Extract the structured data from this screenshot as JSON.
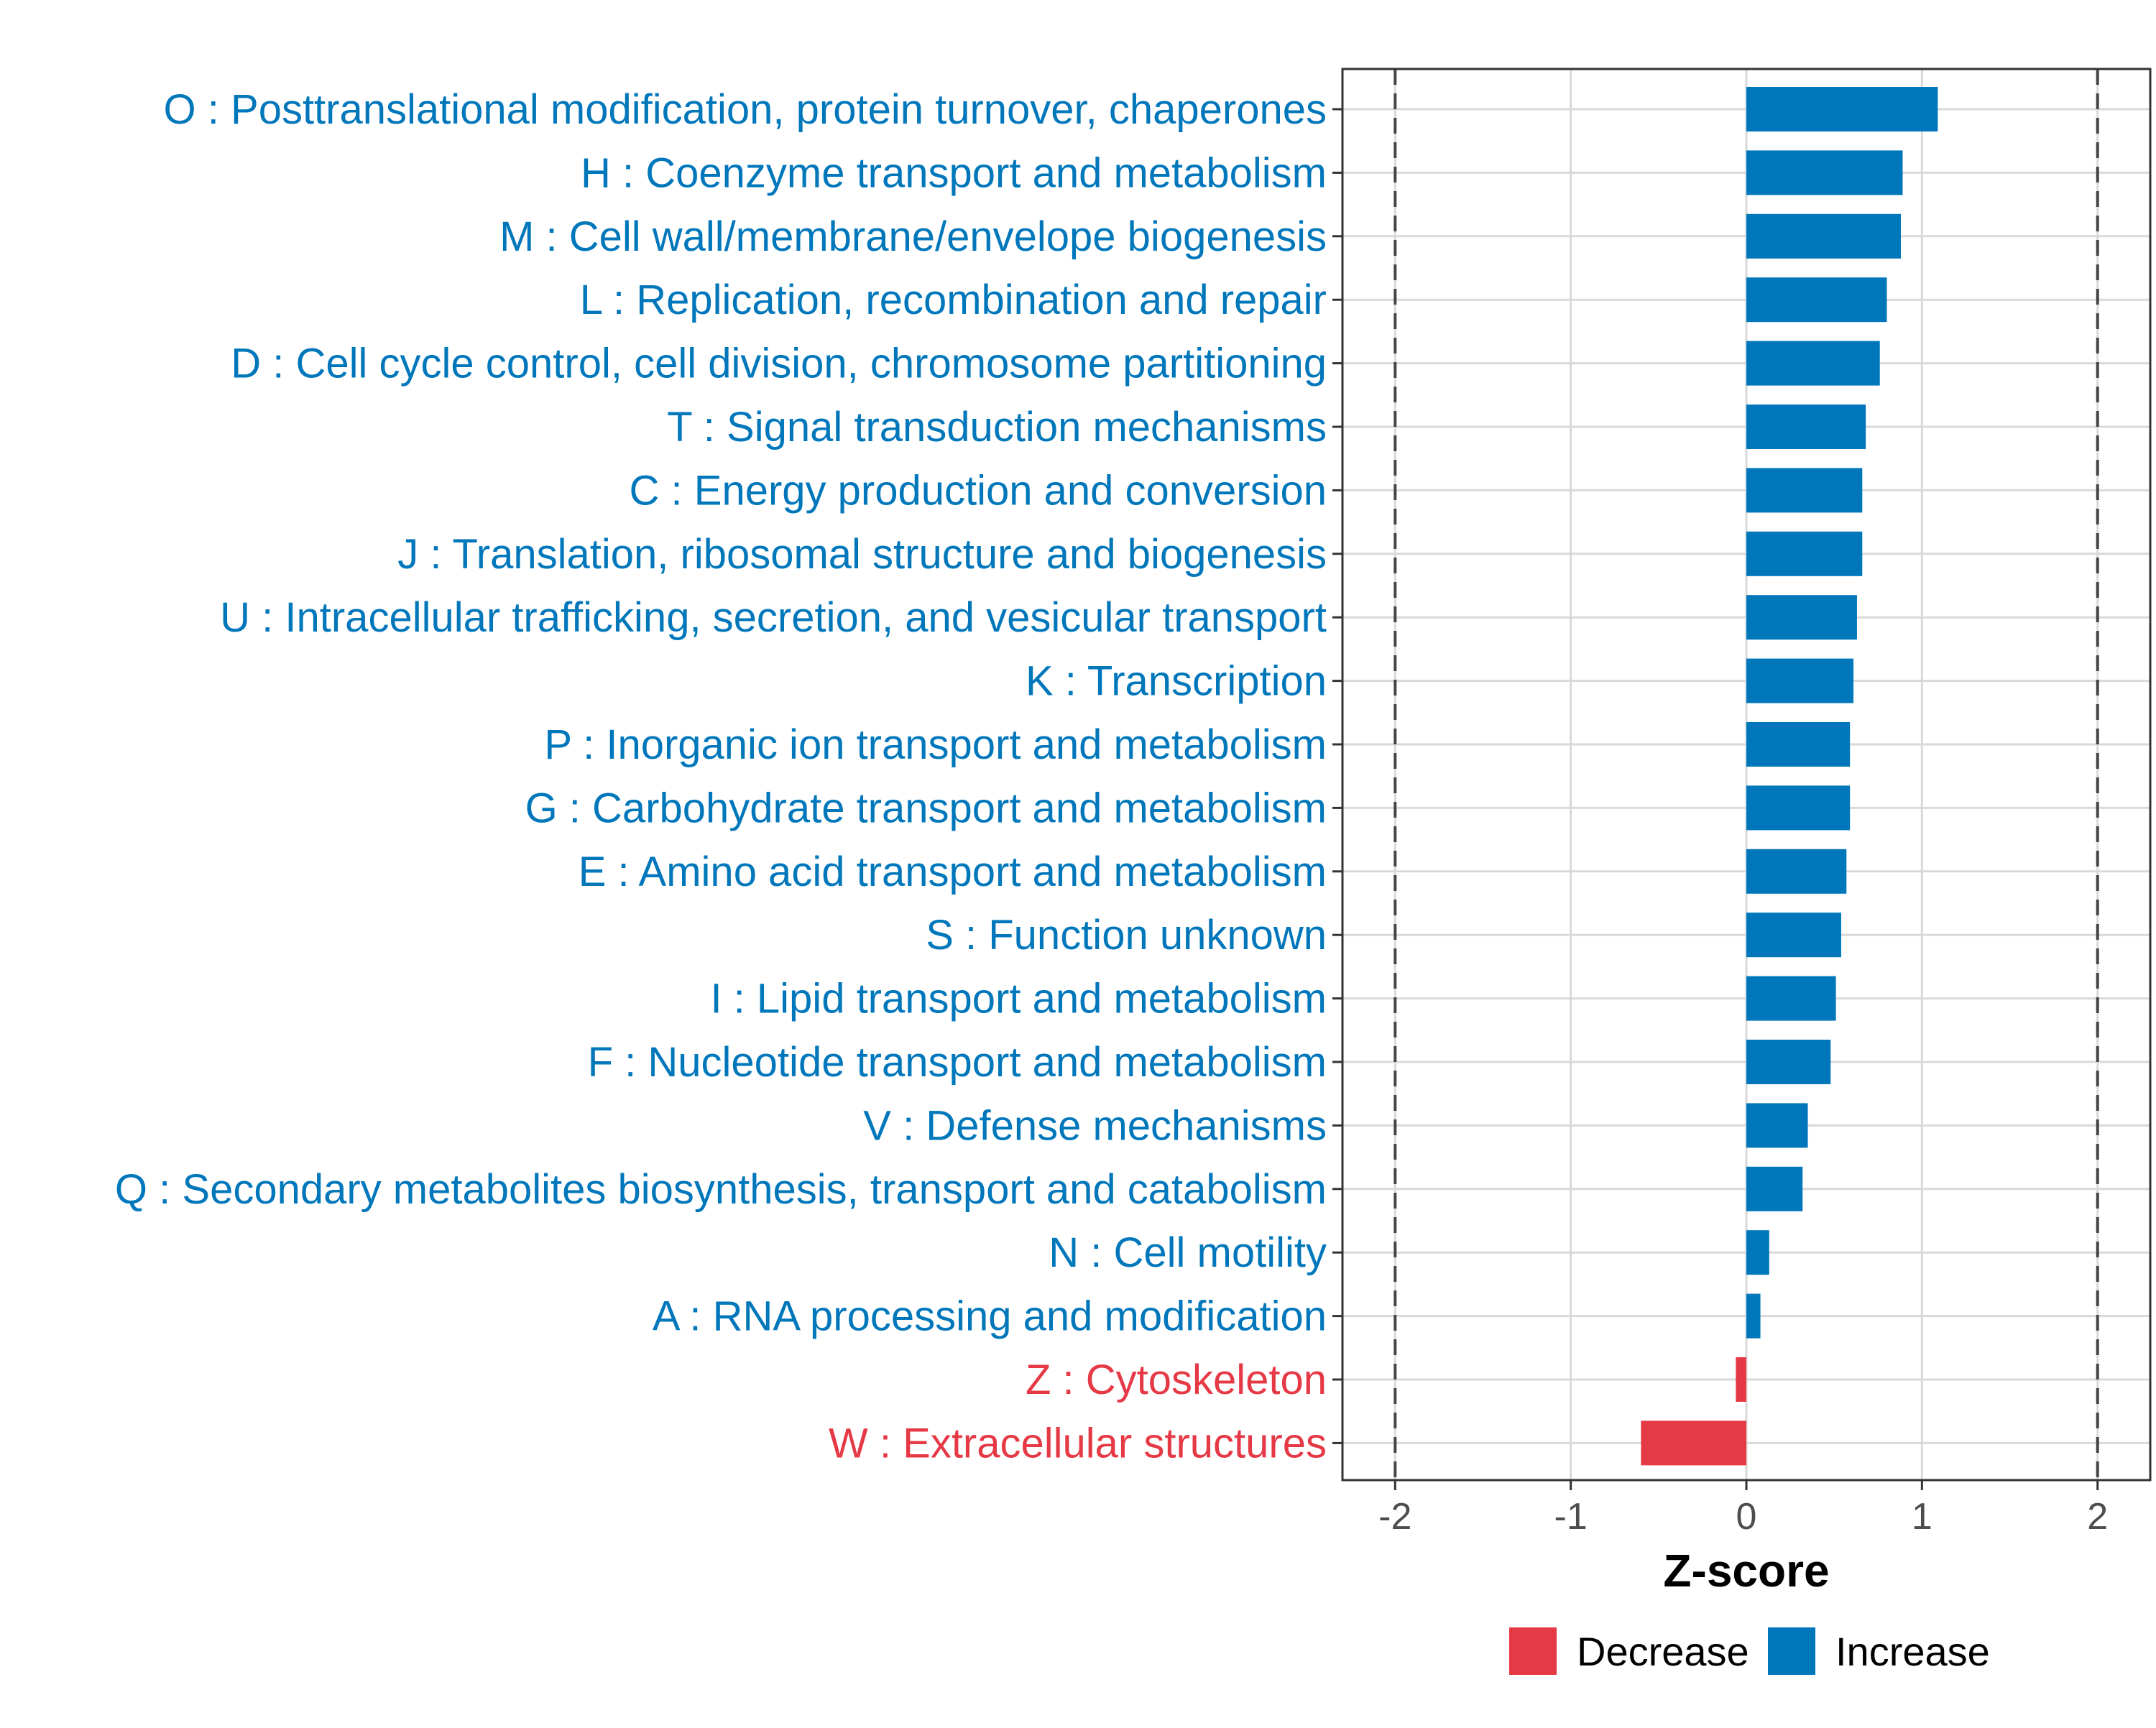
{
  "colors": {
    "increase": "#0077BB",
    "decrease": "#E63946",
    "grid": "#D9D9D9",
    "panel_border": "#333333",
    "threshold_line": "#444444"
  },
  "chart_data": {
    "type": "bar",
    "orientation": "horizontal",
    "xlabel": "Z-score",
    "ylabel": "",
    "xlim": [
      -2.3,
      2.3
    ],
    "x_ticks": [
      -2,
      -1,
      0,
      1,
      2
    ],
    "x_tick_labels": [
      "-2",
      "-1",
      "0",
      "1",
      "2"
    ],
    "threshold_lines": [
      -2,
      2
    ],
    "grid": true,
    "legend": {
      "position": "bottom",
      "entries": [
        {
          "label": "Decrease",
          "color_key": "decrease"
        },
        {
          "label": "Increase",
          "color_key": "increase"
        }
      ]
    },
    "categories": [
      "O : Posttranslational modification, protein turnover, chaperones",
      "H : Coenzyme transport and metabolism",
      "M : Cell wall/membrane/envelope biogenesis",
      "L : Replication, recombination and repair",
      "D : Cell cycle control, cell division, chromosome partitioning",
      "T : Signal transduction mechanisms",
      "C : Energy production and conversion",
      "J : Translation, ribosomal structure and biogenesis",
      "U : Intracellular trafficking, secretion, and vesicular transport",
      "K : Transcription",
      "P : Inorganic ion transport and metabolism",
      "G : Carbohydrate transport and metabolism",
      "E : Amino acid transport and metabolism",
      "S : Function unknown",
      "I : Lipid transport and metabolism",
      "F : Nucleotide transport and metabolism",
      "V : Defense mechanisms",
      "Q : Secondary metabolites biosynthesis, transport and catabolism",
      "N : Cell motility",
      "A : RNA processing and modification",
      "Z : Cytoskeleton",
      "W : Extracellular structures"
    ],
    "values": [
      1.09,
      0.89,
      0.88,
      0.8,
      0.76,
      0.68,
      0.66,
      0.66,
      0.63,
      0.61,
      0.59,
      0.59,
      0.57,
      0.54,
      0.51,
      0.48,
      0.35,
      0.32,
      0.13,
      0.08,
      -0.06,
      -0.6
    ]
  }
}
